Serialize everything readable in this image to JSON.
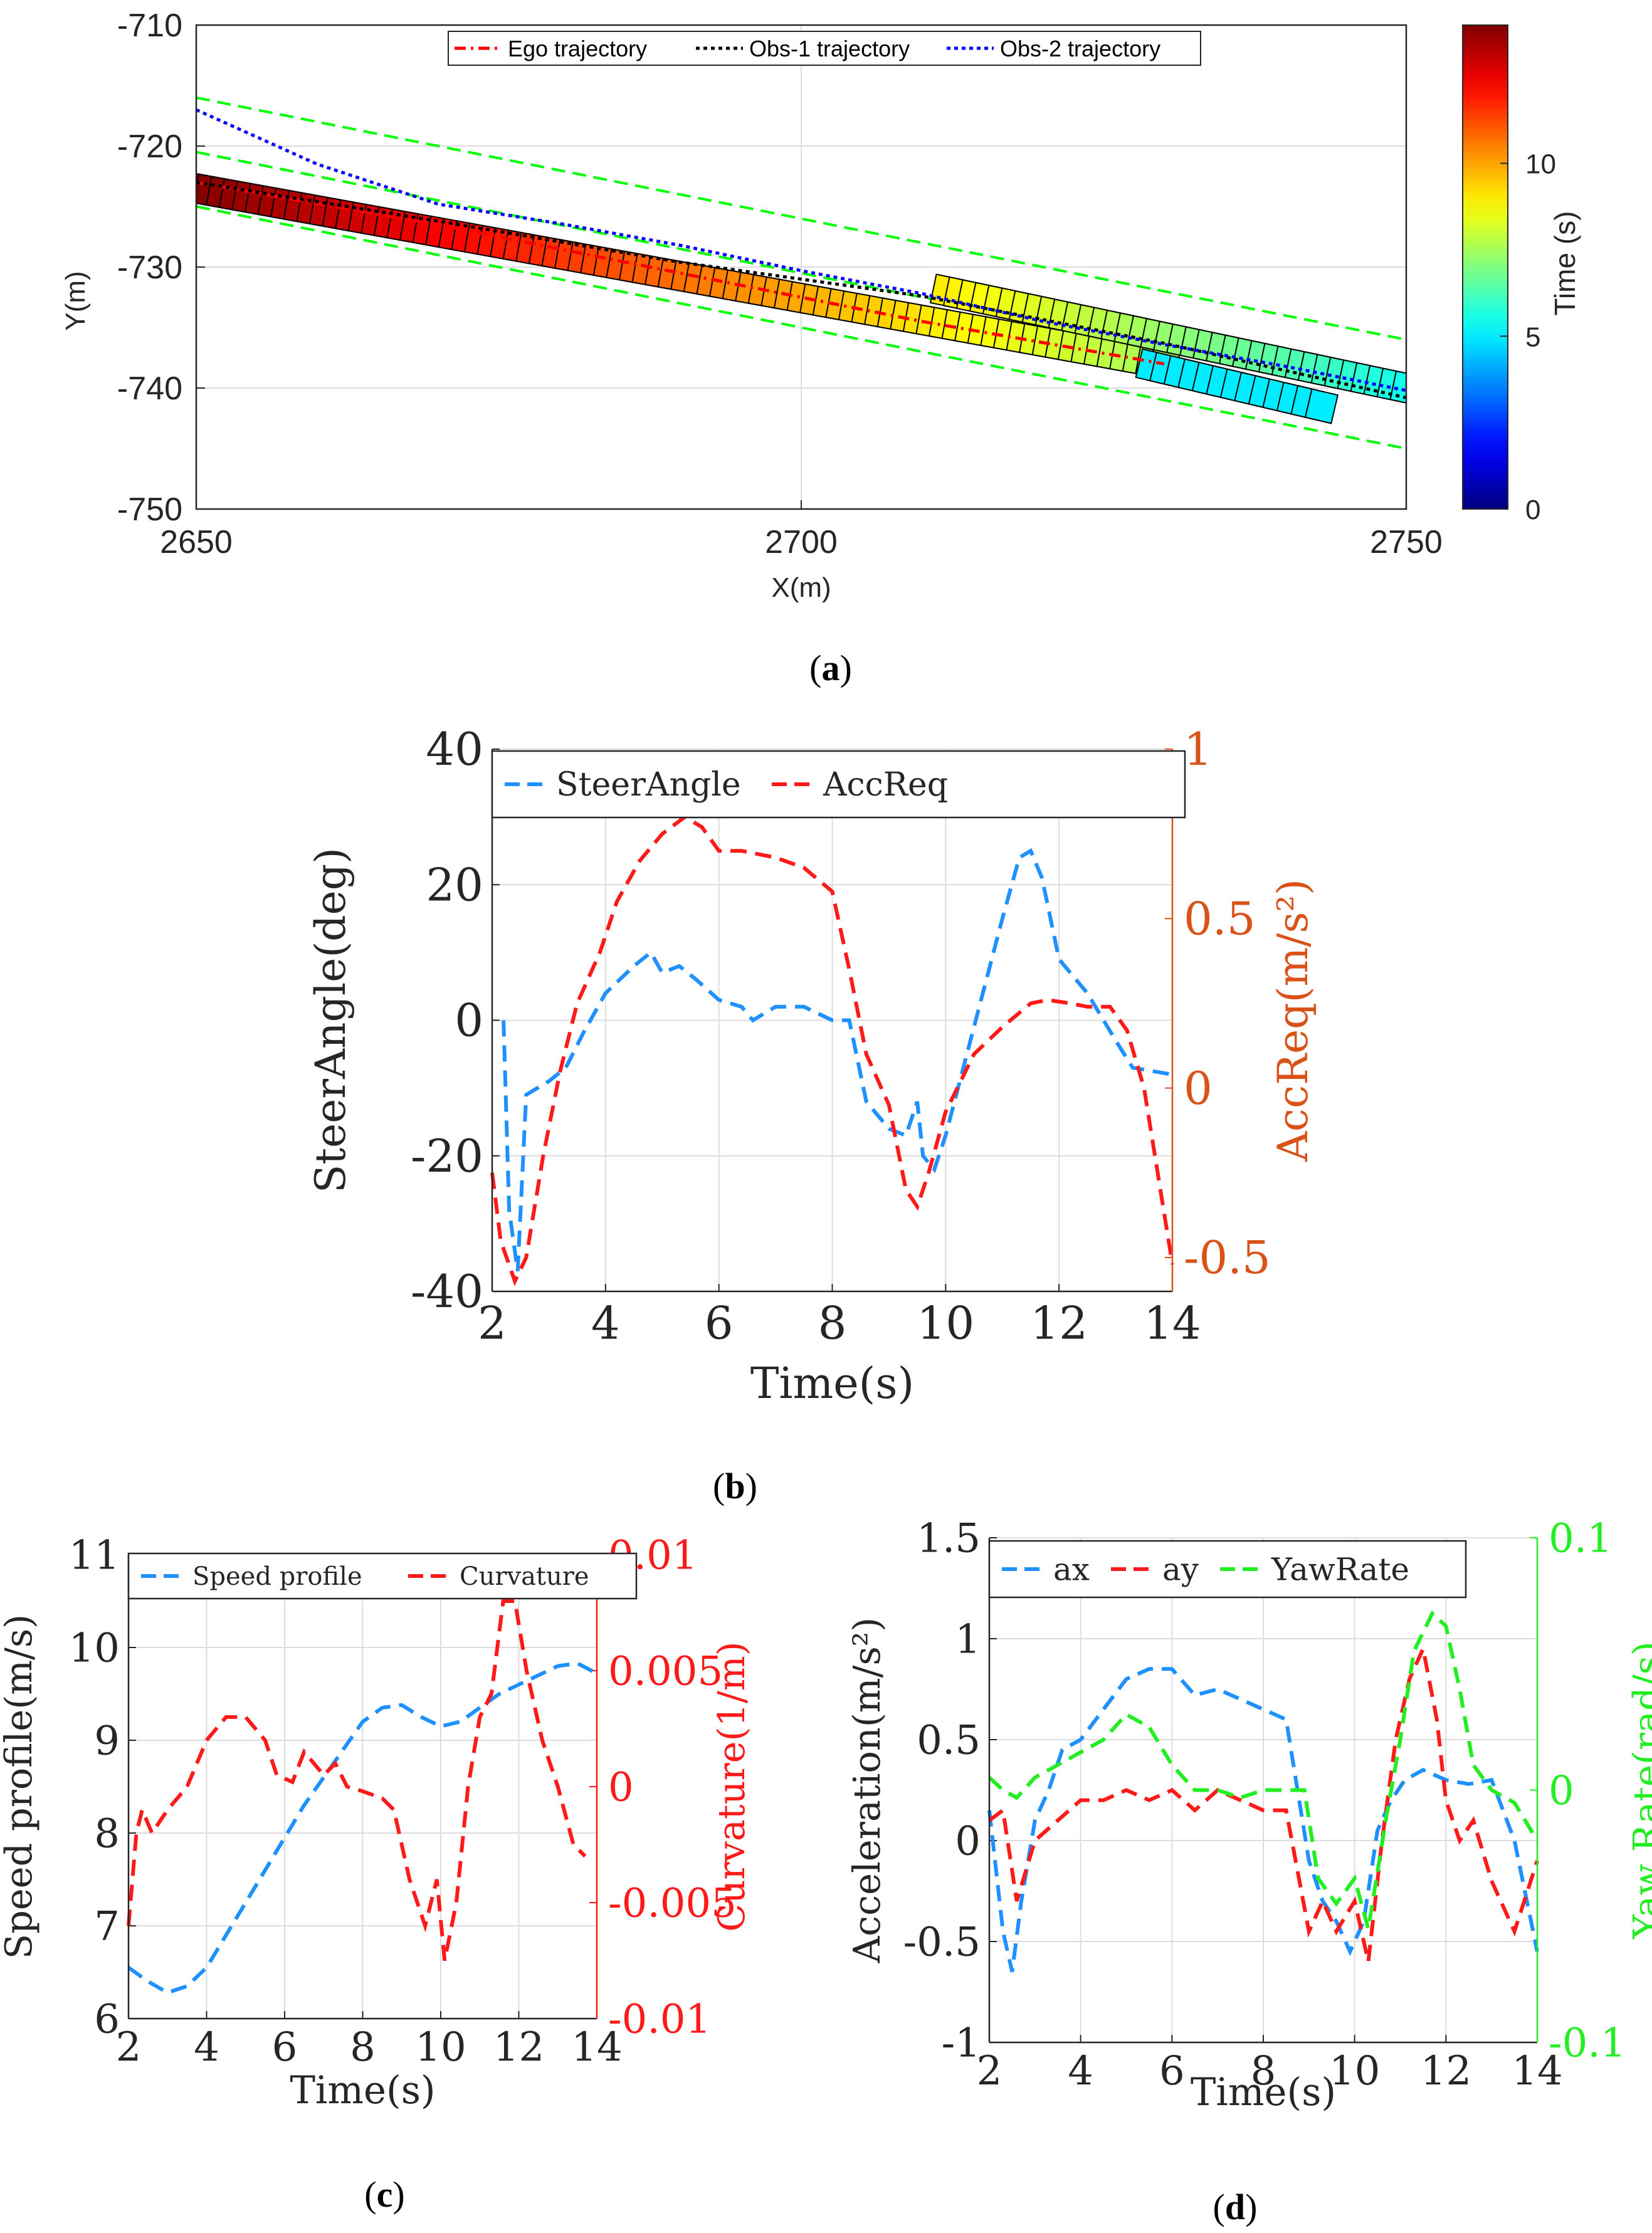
{
  "colors": {
    "ego": "#ff0000",
    "obs1": "#000000",
    "obs2": "#0000ff",
    "lane": "#00ff00",
    "steer": "#1e90ff",
    "acc": "#ff1a1a",
    "acc_axis": "#d95319",
    "speed": "#1e90ff",
    "curv": "#ff1a1a",
    "ax": "#1e90ff",
    "ay": "#ff1a1a",
    "yaw": "#22ee22"
  },
  "chart_data": [
    {
      "id": "a",
      "type": "scatter",
      "caption": "a",
      "xlabel": "X(m)",
      "ylabel": "Y(m)",
      "xlim": [
        2650,
        2750
      ],
      "ylim": [
        -750,
        -710
      ],
      "xticks": [
        "2650",
        "2700",
        "2750"
      ],
      "yticks": [
        "-710",
        "-720",
        "-730",
        "-740",
        "-750"
      ],
      "colorbar": {
        "label": "Time (s)",
        "ticks": [
          "0",
          "5",
          "10"
        ],
        "range": [
          0,
          14
        ]
      },
      "legend": [
        "Ego trajectory",
        "Obs-1 trajectory",
        "Obs-2 trajectory"
      ],
      "lane_lines": [
        {
          "x": [
            2650,
            2750
          ],
          "y": [
            -716,
            -736
          ]
        },
        {
          "x": [
            2650,
            2750
          ],
          "y": [
            -720.5,
            -740.5
          ]
        },
        {
          "x": [
            2650,
            2750
          ],
          "y": [
            -725,
            -745
          ]
        }
      ],
      "series": [
        {
          "name": "Ego trajectory",
          "x": [
            2650,
            2670,
            2690,
            2710,
            2730
          ],
          "y": [
            -723,
            -726.5,
            -730.5,
            -734.5,
            -738
          ]
        },
        {
          "name": "Obs-1 trajectory",
          "x": [
            2650,
            2670,
            2690,
            2710,
            2730,
            2750
          ],
          "y": [
            -723,
            -726.2,
            -729.6,
            -732.4,
            -736.3,
            -740.8
          ]
        },
        {
          "name": "Obs-2 trajectory",
          "x": [
            2650,
            2660,
            2670,
            2680,
            2690,
            2700,
            2710,
            2720,
            2730,
            2740,
            2750
          ],
          "y": [
            -717,
            -721.5,
            -724.8,
            -726.4,
            -728.2,
            -730.3,
            -732.2,
            -734.5,
            -736.4,
            -738.2,
            -740.2
          ]
        }
      ],
      "boxes": [
        {
          "name": "ego",
          "x0": 2650,
          "y0": -723.5,
          "x1": 2730,
          "y1": -738,
          "t0": 14,
          "t1": 7.5
        },
        {
          "name": "obs1",
          "x0": 2712,
          "y0": -732,
          "x1": 2750,
          "y1": -740,
          "t0": 9,
          "t1": 5.5
        },
        {
          "name": "obs2",
          "x0": 2729,
          "y0": -738.2,
          "x1": 2743,
          "y1": -741.5,
          "t0": 5,
          "t1": 5
        }
      ]
    },
    {
      "id": "b",
      "type": "line",
      "caption": "b",
      "xlabel": "Time(s)",
      "ylabel": "SteerAngle(deg)",
      "y2label": "AccReq(m/s²)",
      "xlim": [
        2,
        14
      ],
      "ylim": [
        -40,
        40
      ],
      "y2lim": [
        -0.6,
        1
      ],
      "xticks": [
        "2",
        "4",
        "6",
        "8",
        "10",
        "12",
        "14"
      ],
      "yticks": [
        "40",
        "20",
        "0",
        "-20",
        "-40"
      ],
      "y2ticks": [
        "1",
        "0.5",
        "0",
        "-0.5"
      ],
      "legend": [
        "SteerAngle",
        "AccReq"
      ],
      "series": [
        {
          "name": "SteerAngle",
          "axis": "left",
          "x": [
            2.2,
            2.3,
            2.45,
            2.6,
            2.8,
            3.0,
            3.3,
            3.6,
            4.0,
            4.5,
            4.8,
            5.0,
            5.3,
            5.6,
            6.0,
            6.4,
            6.6,
            7.0,
            7.5,
            8.0,
            8.3,
            8.6,
            9.0,
            9.3,
            9.5,
            9.6,
            9.8,
            10.0,
            10.5,
            11.0,
            11.3,
            11.5,
            11.7,
            12.0,
            12.5,
            13.0,
            13.3,
            14.0
          ],
          "y": [
            0,
            -28,
            -37,
            -11,
            -10,
            -9,
            -7,
            -2,
            4,
            8,
            10,
            7,
            8,
            6,
            3,
            2,
            0,
            2,
            2,
            0,
            0,
            -12,
            -16,
            -17,
            -12,
            -20,
            -22,
            -17,
            -1,
            15,
            24,
            25,
            21,
            9,
            4,
            -3,
            -7,
            -8
          ]
        },
        {
          "name": "AccReq",
          "axis": "right",
          "x": [
            2.0,
            2.15,
            2.4,
            2.6,
            2.9,
            3.2,
            3.5,
            3.9,
            4.2,
            4.6,
            5.0,
            5.4,
            5.7,
            6.0,
            6.4,
            7.0,
            7.5,
            8.0,
            8.3,
            8.6,
            9.0,
            9.3,
            9.5,
            9.7,
            10.0,
            10.5,
            11.0,
            11.5,
            11.8,
            12.2,
            12.5,
            12.9,
            13.2,
            13.5,
            14.0
          ],
          "y": [
            -0.25,
            -0.45,
            -0.57,
            -0.5,
            -0.2,
            0.05,
            0.25,
            0.4,
            0.55,
            0.67,
            0.75,
            0.8,
            0.77,
            0.7,
            0.7,
            0.68,
            0.65,
            0.58,
            0.35,
            0.1,
            -0.05,
            -0.3,
            -0.35,
            -0.25,
            -0.07,
            0.1,
            0.18,
            0.25,
            0.26,
            0.25,
            0.24,
            0.24,
            0.17,
            0.0,
            -0.52
          ]
        }
      ]
    },
    {
      "id": "c",
      "type": "line",
      "caption": "c",
      "xlabel": "Time(s)",
      "ylabel": "Speed profile(m/s)",
      "y2label": "Curvature(1/m)",
      "xlim": [
        2,
        14
      ],
      "ylim": [
        6,
        11
      ],
      "y2lim": [
        -0.01,
        0.01
      ],
      "xticks": [
        "2",
        "4",
        "6",
        "8",
        "10",
        "12",
        "14"
      ],
      "yticks": [
        "11",
        "10",
        "9",
        "8",
        "7",
        "6"
      ],
      "y2ticks": [
        "0.01",
        "0.005",
        "0",
        "-0.005",
        "-0.01"
      ],
      "legend": [
        "Speed profile",
        "Curvature"
      ],
      "series": [
        {
          "name": "Speed profile",
          "axis": "left",
          "x": [
            2.0,
            2.5,
            3.0,
            3.5,
            4.0,
            4.5,
            5.0,
            5.5,
            6.0,
            6.5,
            7.0,
            7.5,
            8.0,
            8.5,
            9.0,
            9.5,
            10.0,
            10.5,
            11.0,
            11.5,
            12.0,
            12.5,
            13.0,
            13.5,
            14.0
          ],
          "y": [
            6.55,
            6.4,
            6.28,
            6.35,
            6.55,
            6.9,
            7.25,
            7.6,
            7.95,
            8.3,
            8.6,
            8.9,
            9.2,
            9.35,
            9.38,
            9.25,
            9.15,
            9.2,
            9.35,
            9.5,
            9.6,
            9.7,
            9.8,
            9.83,
            9.72
          ]
        },
        {
          "name": "Curvature",
          "axis": "right",
          "x": [
            2.0,
            2.2,
            2.35,
            2.6,
            3.0,
            3.5,
            4.0,
            4.5,
            5.0,
            5.5,
            5.8,
            6.2,
            6.5,
            7.0,
            7.3,
            7.6,
            8.0,
            8.5,
            8.8,
            9.2,
            9.6,
            9.9,
            10.1,
            10.4,
            10.7,
            11.0,
            11.3,
            11.6,
            11.9,
            12.2,
            12.6,
            13.0,
            13.4,
            13.7
          ],
          "y": [
            -0.006,
            -0.002,
            -0.001,
            -0.002,
            -0.001,
            0.0,
            0.002,
            0.003,
            0.003,
            0.002,
            0.0005,
            0.0002,
            0.0015,
            0.0005,
            0.001,
            0.0,
            -0.0002,
            -0.0005,
            -0.001,
            -0.004,
            -0.006,
            -0.004,
            -0.0075,
            -0.005,
            0.0,
            0.003,
            0.004,
            0.008,
            0.008,
            0.005,
            0.002,
            0.0,
            -0.0025,
            -0.003
          ]
        }
      ]
    },
    {
      "id": "d",
      "type": "line",
      "caption": "d",
      "xlabel": "Time(s)",
      "ylabel": "Acceleration(m/s²)",
      "y2label": "Yaw Rate(rad/s)",
      "xlim": [
        2,
        14
      ],
      "ylim": [
        -1,
        1.5
      ],
      "y2lim": [
        -0.1,
        0.1
      ],
      "xticks": [
        "2",
        "4",
        "6",
        "8",
        "10",
        "12",
        "14"
      ],
      "yticks": [
        "1.5",
        "1",
        "0.5",
        "0",
        "-0.5",
        "-1"
      ],
      "y2ticks": [
        "0.1",
        "0",
        "-0.1"
      ],
      "legend": [
        "ax",
        "ay",
        "YawRate"
      ],
      "series": [
        {
          "name": "ax",
          "axis": "left",
          "x": [
            2.0,
            2.3,
            2.5,
            2.7,
            3.0,
            3.3,
            3.6,
            4.0,
            4.5,
            5.0,
            5.5,
            6.0,
            6.5,
            7.0,
            7.5,
            8.0,
            8.5,
            9.0,
            9.3,
            9.6,
            9.9,
            10.2,
            10.5,
            10.8,
            11.1,
            11.5,
            12.0,
            12.5,
            13.0,
            13.5,
            14.0
          ],
          "y": [
            0.15,
            -0.45,
            -0.65,
            -0.3,
            0.1,
            0.25,
            0.45,
            0.5,
            0.65,
            0.8,
            0.85,
            0.85,
            0.72,
            0.75,
            0.7,
            0.65,
            0.6,
            -0.1,
            -0.3,
            -0.4,
            -0.55,
            -0.4,
            0.05,
            0.2,
            0.3,
            0.35,
            0.3,
            0.28,
            0.3,
            0.0,
            -0.55
          ]
        },
        {
          "name": "ay",
          "axis": "left",
          "x": [
            2.0,
            2.3,
            2.6,
            3.0,
            3.5,
            4.0,
            4.5,
            5.0,
            5.5,
            6.0,
            6.5,
            7.0,
            7.5,
            8.0,
            8.5,
            9.0,
            9.3,
            9.6,
            10.0,
            10.3,
            10.6,
            10.9,
            11.2,
            11.5,
            11.8,
            12.0,
            12.3,
            12.6,
            13.0,
            13.5,
            14.0
          ],
          "y": [
            0.1,
            0.15,
            -0.3,
            0.0,
            0.1,
            0.2,
            0.2,
            0.25,
            0.2,
            0.25,
            0.15,
            0.25,
            0.2,
            0.15,
            0.15,
            -0.45,
            -0.3,
            -0.45,
            -0.3,
            -0.6,
            0.0,
            0.5,
            0.8,
            0.95,
            0.6,
            0.2,
            0.0,
            0.1,
            -0.2,
            -0.45,
            -0.1
          ]
        },
        {
          "name": "YawRate",
          "axis": "right",
          "x": [
            2.0,
            2.3,
            2.6,
            3.0,
            3.5,
            4.0,
            4.5,
            5.0,
            5.5,
            6.0,
            6.5,
            7.0,
            7.5,
            8.0,
            8.5,
            8.9,
            9.2,
            9.6,
            10.0,
            10.3,
            10.7,
            11.0,
            11.3,
            11.7,
            12.0,
            12.3,
            12.6,
            13.0,
            13.5,
            14.0
          ],
          "y": [
            0.005,
            0.0,
            -0.003,
            0.005,
            0.01,
            0.015,
            0.02,
            0.03,
            0.025,
            0.01,
            0.0,
            0.0,
            -0.003,
            0.0,
            0.0,
            0.0,
            -0.035,
            -0.045,
            -0.035,
            -0.055,
            -0.01,
            0.02,
            0.055,
            0.07,
            0.065,
            0.04,
            0.01,
            0.0,
            -0.005,
            -0.02
          ]
        }
      ]
    }
  ]
}
